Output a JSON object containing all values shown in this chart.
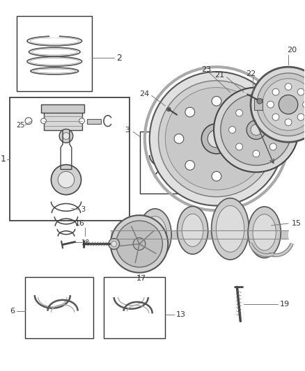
{
  "background_color": "#ffffff",
  "line_color": "#333333",
  "figsize": [
    4.38,
    5.33
  ],
  "dpi": 100
}
